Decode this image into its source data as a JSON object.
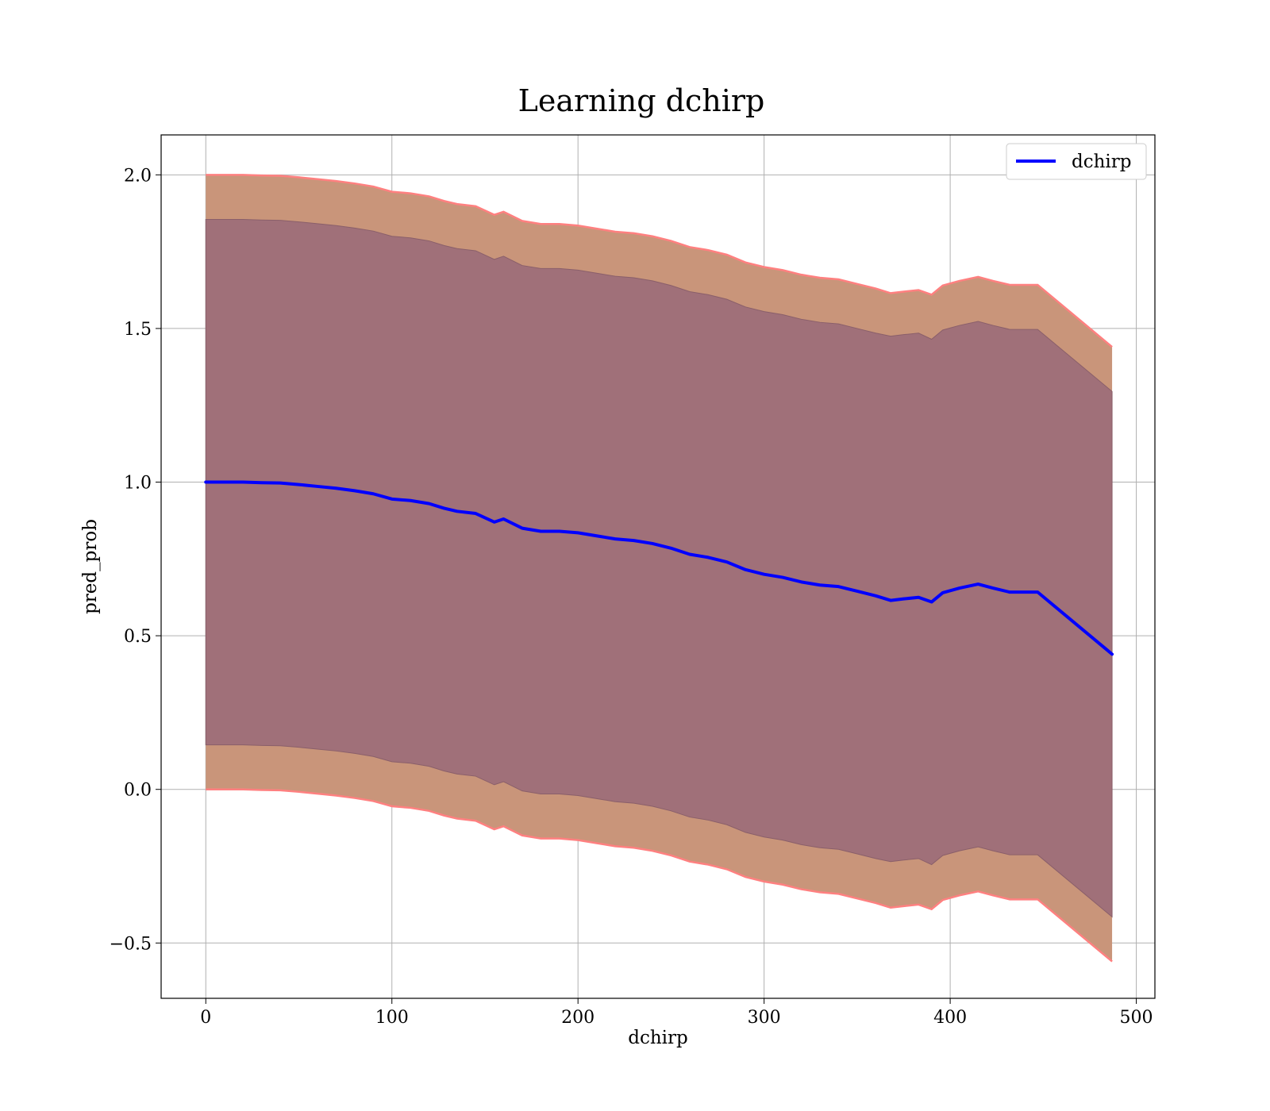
{
  "chart_data": {
    "type": "line",
    "title": "Learning dchirp",
    "xlabel": "dchirp",
    "ylabel": "pred_prob",
    "xlim": [
      -24,
      510
    ],
    "ylim": [
      -0.68,
      2.13
    ],
    "xticks": [
      0,
      100,
      200,
      300,
      400,
      500
    ],
    "xtick_labels": [
      "0",
      "100",
      "200",
      "300",
      "400",
      "500"
    ],
    "yticks": [
      -0.5,
      0.0,
      0.5,
      1.0,
      1.5,
      2.0
    ],
    "ytick_labels": [
      "−0.5",
      "0.0",
      "0.5",
      "1.0",
      "1.5",
      "2.0"
    ],
    "grid": true,
    "legend": {
      "position": "upper-right",
      "entries": [
        "dchirp"
      ]
    },
    "colors": {
      "line": "#0000ff",
      "outer_band": "#c9957a",
      "outer_band_edge": "#ff8080",
      "inner_band": "#a07079"
    },
    "series": [
      {
        "name": "dchirp",
        "x": [
          0,
          10,
          20,
          30,
          40,
          50,
          60,
          70,
          80,
          90,
          100,
          110,
          120,
          128,
          135,
          145,
          155,
          160,
          170,
          180,
          190,
          200,
          210,
          220,
          230,
          240,
          250,
          260,
          270,
          280,
          290,
          300,
          310,
          320,
          330,
          340,
          350,
          360,
          368,
          375,
          383,
          390,
          396,
          405,
          415,
          423,
          432,
          440,
          447,
          487
        ],
        "mean": [
          1.0,
          1.0,
          1.0,
          0.998,
          0.997,
          0.992,
          0.986,
          0.98,
          0.972,
          0.962,
          0.945,
          0.94,
          0.93,
          0.915,
          0.905,
          0.898,
          0.87,
          0.88,
          0.85,
          0.84,
          0.84,
          0.835,
          0.825,
          0.815,
          0.81,
          0.8,
          0.785,
          0.765,
          0.755,
          0.74,
          0.715,
          0.7,
          0.69,
          0.675,
          0.665,
          0.66,
          0.645,
          0.63,
          0.615,
          0.62,
          0.625,
          0.61,
          0.64,
          0.655,
          0.668,
          0.655,
          0.642,
          0.642,
          0.642,
          0.44
        ],
        "inner_upper": [
          1.855,
          1.855,
          1.855,
          1.853,
          1.852,
          1.847,
          1.841,
          1.835,
          1.827,
          1.817,
          1.8,
          1.795,
          1.785,
          1.77,
          1.76,
          1.753,
          1.725,
          1.735,
          1.705,
          1.695,
          1.695,
          1.69,
          1.68,
          1.67,
          1.665,
          1.655,
          1.64,
          1.62,
          1.61,
          1.595,
          1.57,
          1.555,
          1.545,
          1.53,
          1.52,
          1.515,
          1.5,
          1.485,
          1.475,
          1.48,
          1.485,
          1.465,
          1.495,
          1.51,
          1.523,
          1.51,
          1.497,
          1.497,
          1.497,
          1.295
        ],
        "inner_lower": [
          0.145,
          0.145,
          0.145,
          0.143,
          0.142,
          0.137,
          0.131,
          0.125,
          0.117,
          0.107,
          0.09,
          0.085,
          0.075,
          0.06,
          0.05,
          0.043,
          0.015,
          0.025,
          -0.005,
          -0.015,
          -0.015,
          -0.02,
          -0.03,
          -0.04,
          -0.045,
          -0.055,
          -0.07,
          -0.09,
          -0.1,
          -0.115,
          -0.14,
          -0.155,
          -0.165,
          -0.18,
          -0.19,
          -0.195,
          -0.21,
          -0.225,
          -0.235,
          -0.23,
          -0.225,
          -0.245,
          -0.215,
          -0.2,
          -0.187,
          -0.2,
          -0.213,
          -0.213,
          -0.213,
          -0.415
        ],
        "outer_upper": [
          2.0,
          2.0,
          2.0,
          1.998,
          1.997,
          1.992,
          1.986,
          1.98,
          1.972,
          1.962,
          1.945,
          1.94,
          1.93,
          1.915,
          1.905,
          1.898,
          1.87,
          1.88,
          1.85,
          1.84,
          1.84,
          1.835,
          1.825,
          1.815,
          1.81,
          1.8,
          1.785,
          1.765,
          1.755,
          1.74,
          1.715,
          1.7,
          1.69,
          1.675,
          1.665,
          1.66,
          1.645,
          1.63,
          1.615,
          1.62,
          1.625,
          1.61,
          1.64,
          1.655,
          1.668,
          1.655,
          1.642,
          1.642,
          1.642,
          1.44
        ],
        "outer_lower": [
          0.0,
          0.0,
          0.0,
          -0.002,
          -0.003,
          -0.008,
          -0.014,
          -0.02,
          -0.028,
          -0.038,
          -0.055,
          -0.06,
          -0.07,
          -0.085,
          -0.095,
          -0.102,
          -0.13,
          -0.12,
          -0.15,
          -0.16,
          -0.16,
          -0.165,
          -0.175,
          -0.185,
          -0.19,
          -0.2,
          -0.215,
          -0.235,
          -0.245,
          -0.26,
          -0.285,
          -0.3,
          -0.31,
          -0.325,
          -0.335,
          -0.34,
          -0.355,
          -0.37,
          -0.385,
          -0.38,
          -0.375,
          -0.39,
          -0.36,
          -0.345,
          -0.332,
          -0.345,
          -0.358,
          -0.358,
          -0.358,
          -0.56
        ]
      }
    ]
  }
}
